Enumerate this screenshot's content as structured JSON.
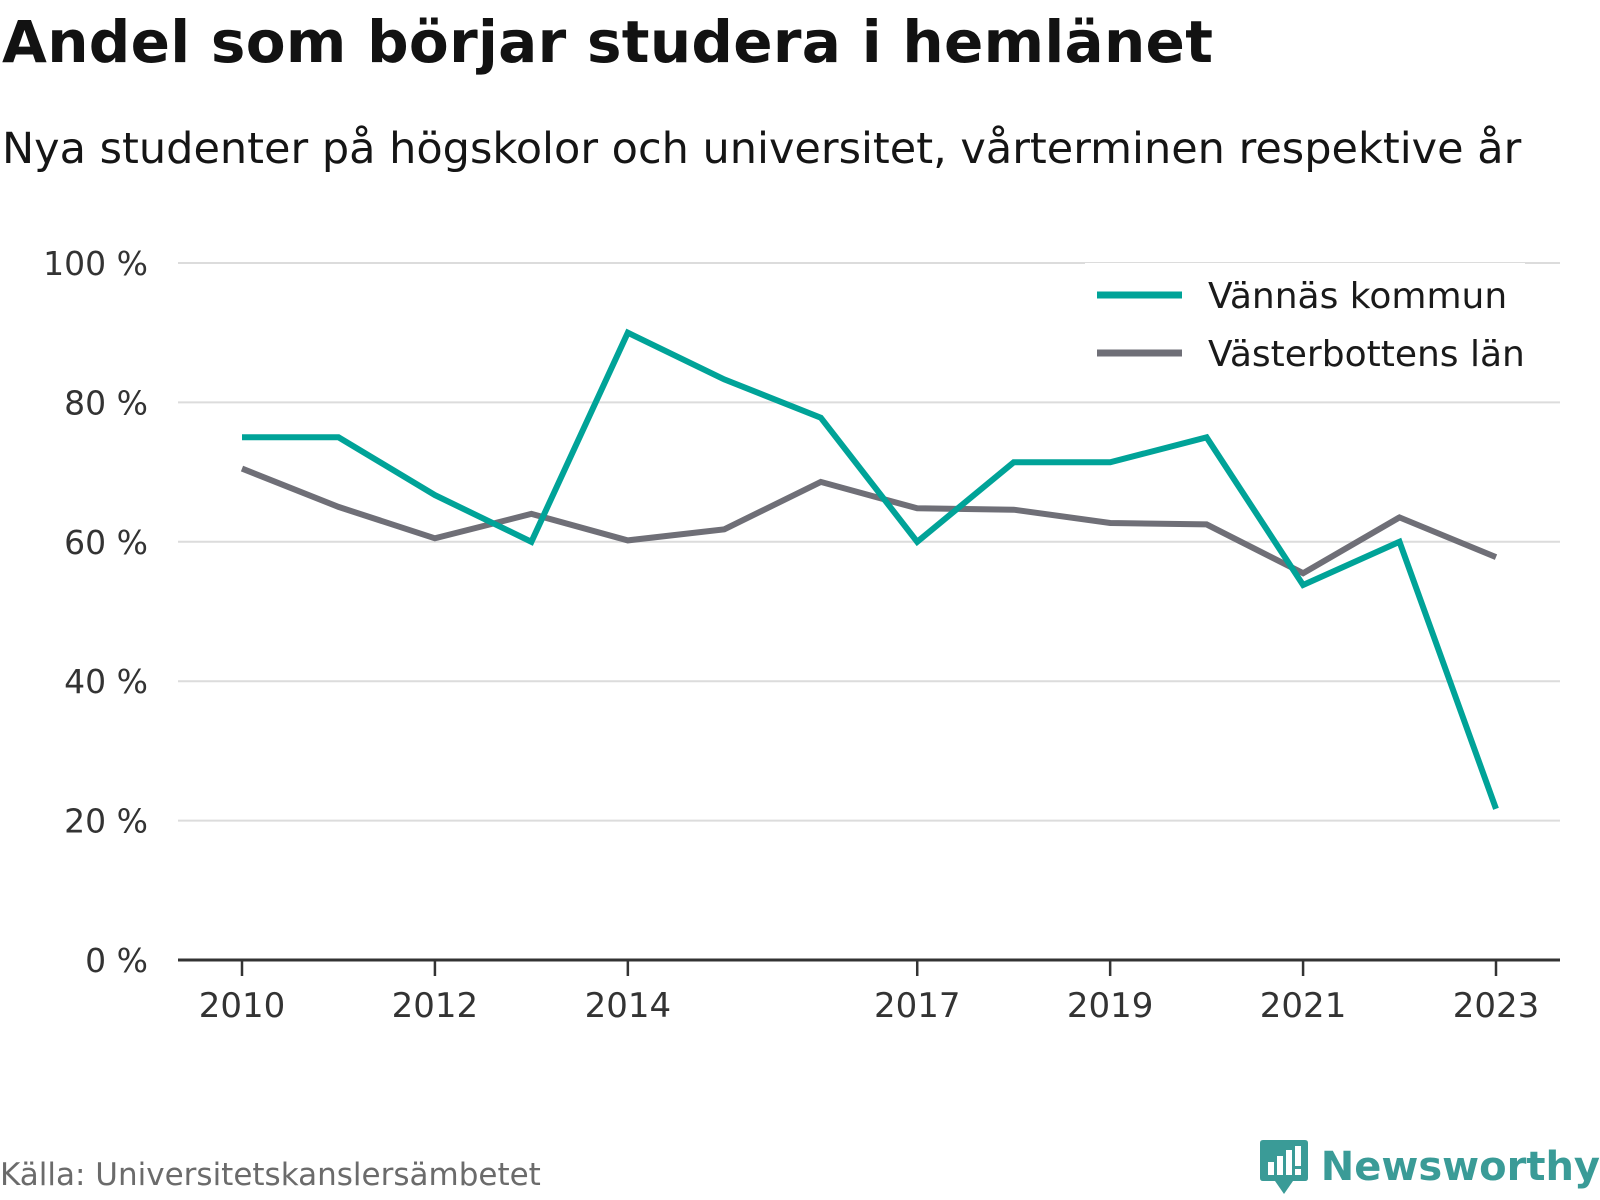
{
  "title": "Andel som börjar studera i hemlänet",
  "subtitle": "Nya studenter på högskolor och universitet, vårterminen respektive år",
  "source": "Källa: Universitetskanslersämbetet",
  "brand": {
    "name": "Newsworthy",
    "icon": "newsworthy-logo-icon",
    "color": "#3a9b97"
  },
  "chart_data": {
    "type": "line",
    "x": [
      2010,
      2011,
      2012,
      2013,
      2014,
      2015,
      2016,
      2017,
      2018,
      2019,
      2020,
      2021,
      2022,
      2023
    ],
    "x_tick_labels": [
      "2010",
      "2012",
      "2014",
      "2017",
      "2019",
      "2021",
      "2023"
    ],
    "y_tick_labels": [
      "0 %",
      "20 %",
      "40 %",
      "60 %",
      "80 %",
      "100 %"
    ],
    "ylim": [
      0,
      100
    ],
    "grid": true,
    "legend_position": "top-right",
    "series": [
      {
        "name": "Vännäs kommun",
        "color": "#00a398",
        "values": [
          75,
          75,
          66.7,
          60,
          90,
          83.3,
          77.8,
          60,
          71.4,
          71.4,
          75,
          53.8,
          60,
          21.7
        ]
      },
      {
        "name": "Västerbottens län",
        "color": "#6f6f77",
        "values": [
          70.5,
          65,
          60.5,
          64,
          60.2,
          61.8,
          68.6,
          64.8,
          64.6,
          62.7,
          62.5,
          55.5,
          63.5,
          57.8
        ]
      }
    ]
  }
}
